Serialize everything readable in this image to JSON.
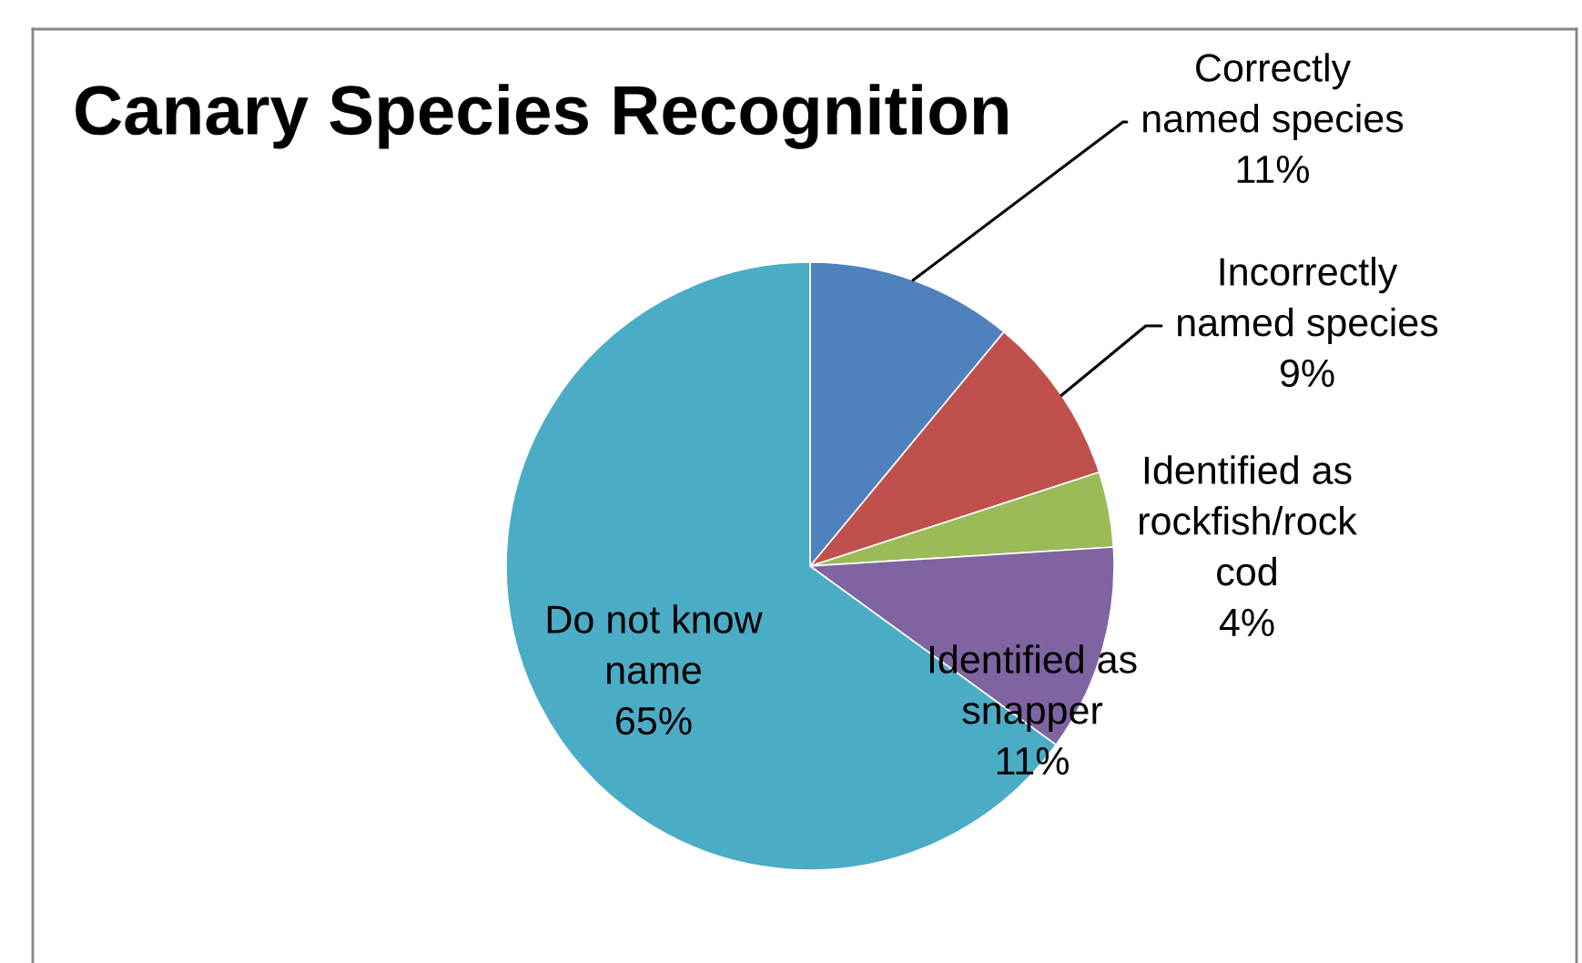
{
  "chart_data": {
    "type": "pie",
    "title": "Canary Species Recognition",
    "categories": [
      "Correctly\nnamed species",
      "Incorrectly\nnamed species",
      "Identified as\nrockfish/rock\ncod",
      "Identified as\nsnapper",
      "Do not know\nname"
    ],
    "values": [
      11,
      9,
      4,
      11,
      65
    ],
    "colors": [
      "#4f81bd",
      "#c0504d",
      "#9bbb59",
      "#8064a2",
      "#4bacc6"
    ],
    "value_labels": [
      "11%",
      "9%",
      "4%",
      "11%",
      "65%"
    ]
  }
}
